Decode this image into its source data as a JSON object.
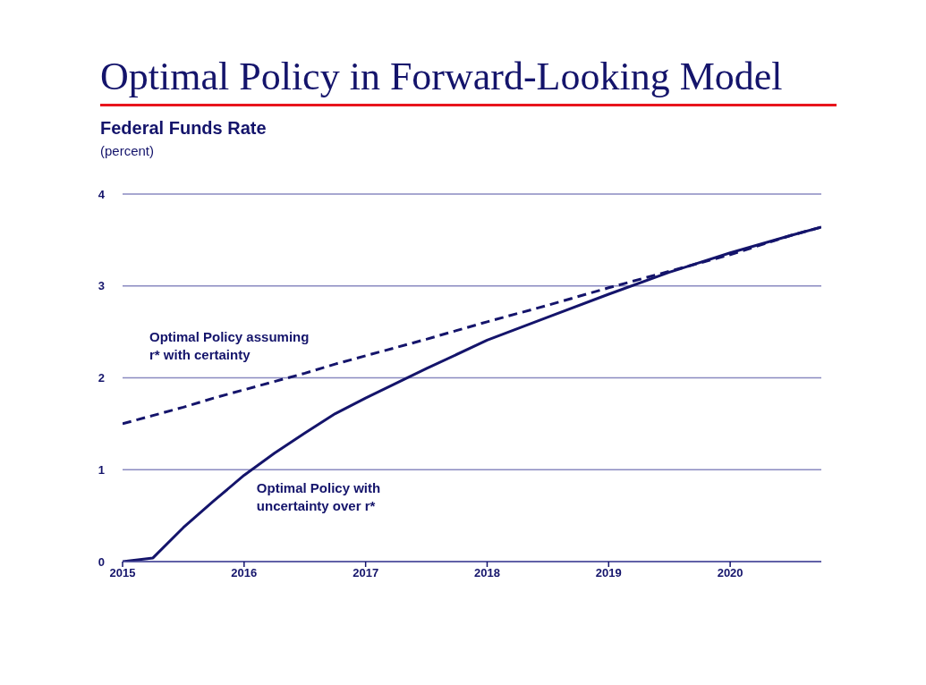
{
  "chart_data": {
    "type": "line",
    "title": "Optimal Policy in Forward-Looking Model",
    "ylabel": "Federal Funds Rate",
    "subtitle": "(percent)",
    "x": [
      2015,
      2015.25,
      2015.5,
      2015.75,
      2016,
      2016.25,
      2016.5,
      2016.75,
      2017,
      2017.5,
      2018,
      2018.5,
      2019,
      2019.5,
      2020,
      2020.5,
      2020.75
    ],
    "series": [
      {
        "name": "Optimal Policy assuming r* with certainty",
        "color": "#14146b",
        "line_style": "dashed",
        "values": [
          1.5,
          1.59,
          1.68,
          1.78,
          1.87,
          1.96,
          2.05,
          2.15,
          2.24,
          2.42,
          2.61,
          2.79,
          2.98,
          3.16,
          3.34,
          3.55,
          3.64
        ]
      },
      {
        "name": "Optimal Policy with uncertainty over r*",
        "color": "#14146b",
        "line_style": "solid",
        "values": [
          0,
          0.04,
          0.37,
          0.66,
          0.94,
          1.18,
          1.4,
          1.61,
          1.78,
          2.1,
          2.41,
          2.66,
          2.91,
          3.15,
          3.36,
          3.55,
          3.64
        ]
      }
    ],
    "xlim": [
      2015,
      2020.75
    ],
    "xticks": [
      2015,
      2016,
      2017,
      2018,
      2019,
      2020
    ],
    "ylim": [
      0,
      4
    ],
    "yticks": [
      0,
      1,
      2,
      3,
      4
    ],
    "grid": "y",
    "marker": "none"
  }
}
